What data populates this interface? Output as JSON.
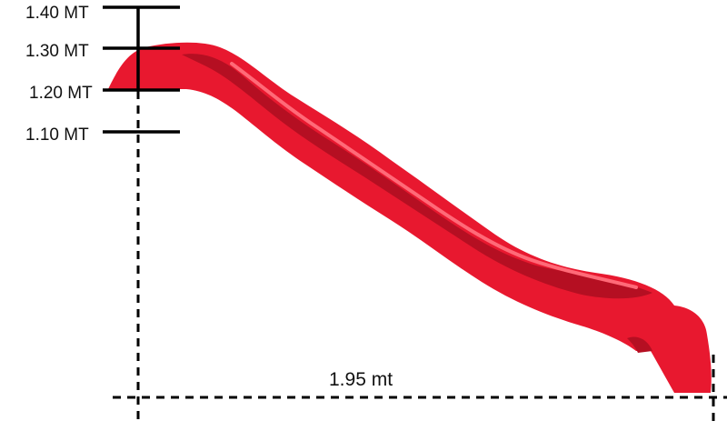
{
  "height_scale": {
    "ticks": [
      {
        "label": "1.40 MT",
        "value": 1.4
      },
      {
        "label": "1.30 MT",
        "value": 1.3
      },
      {
        "label": "1.20 MT",
        "value": 1.2
      },
      {
        "label": "1.10 MT",
        "value": 1.1
      }
    ]
  },
  "width_dimension": {
    "label": "1.95 mt",
    "value": 1.95
  },
  "slide": {
    "color": "#e8182f",
    "shadow_color": "#b50f22",
    "highlight_color": "#ff6a78"
  }
}
